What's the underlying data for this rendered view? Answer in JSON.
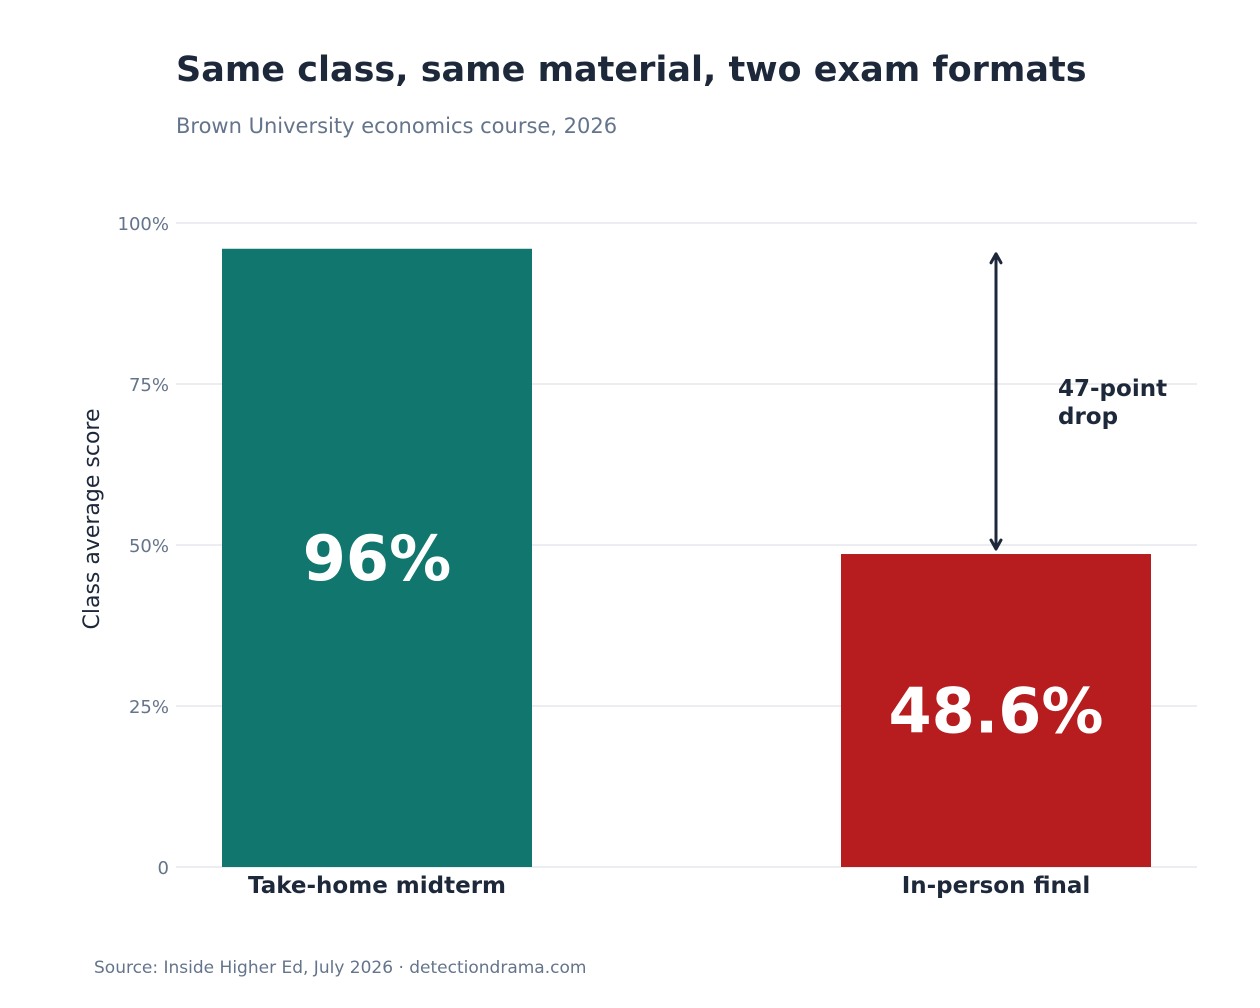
{
  "chart_data": {
    "type": "bar",
    "title": "Same class, same material, two exam formats",
    "subtitle": "Brown University economics course, 2026",
    "ylabel": "Class average score",
    "xlabel": "",
    "ylim": [
      0,
      100
    ],
    "yticks": [
      0,
      25,
      50,
      75,
      100
    ],
    "ytick_labels": [
      "0",
      "25%",
      "50%",
      "75%",
      "100%"
    ],
    "categories": [
      "Take-home midterm",
      "In-person final"
    ],
    "values": [
      96,
      48.6
    ],
    "value_labels": [
      "96%",
      "48.6%"
    ],
    "colors": [
      "#11766e",
      "#b71c1e"
    ],
    "grid": true,
    "annotation": {
      "line1": "47-point",
      "line2": "drop",
      "from": 96,
      "to": 48.6,
      "category": "In-person final"
    },
    "source": "Source: Inside Higher Ed, July 2026  ·  detectiondrama.com"
  }
}
